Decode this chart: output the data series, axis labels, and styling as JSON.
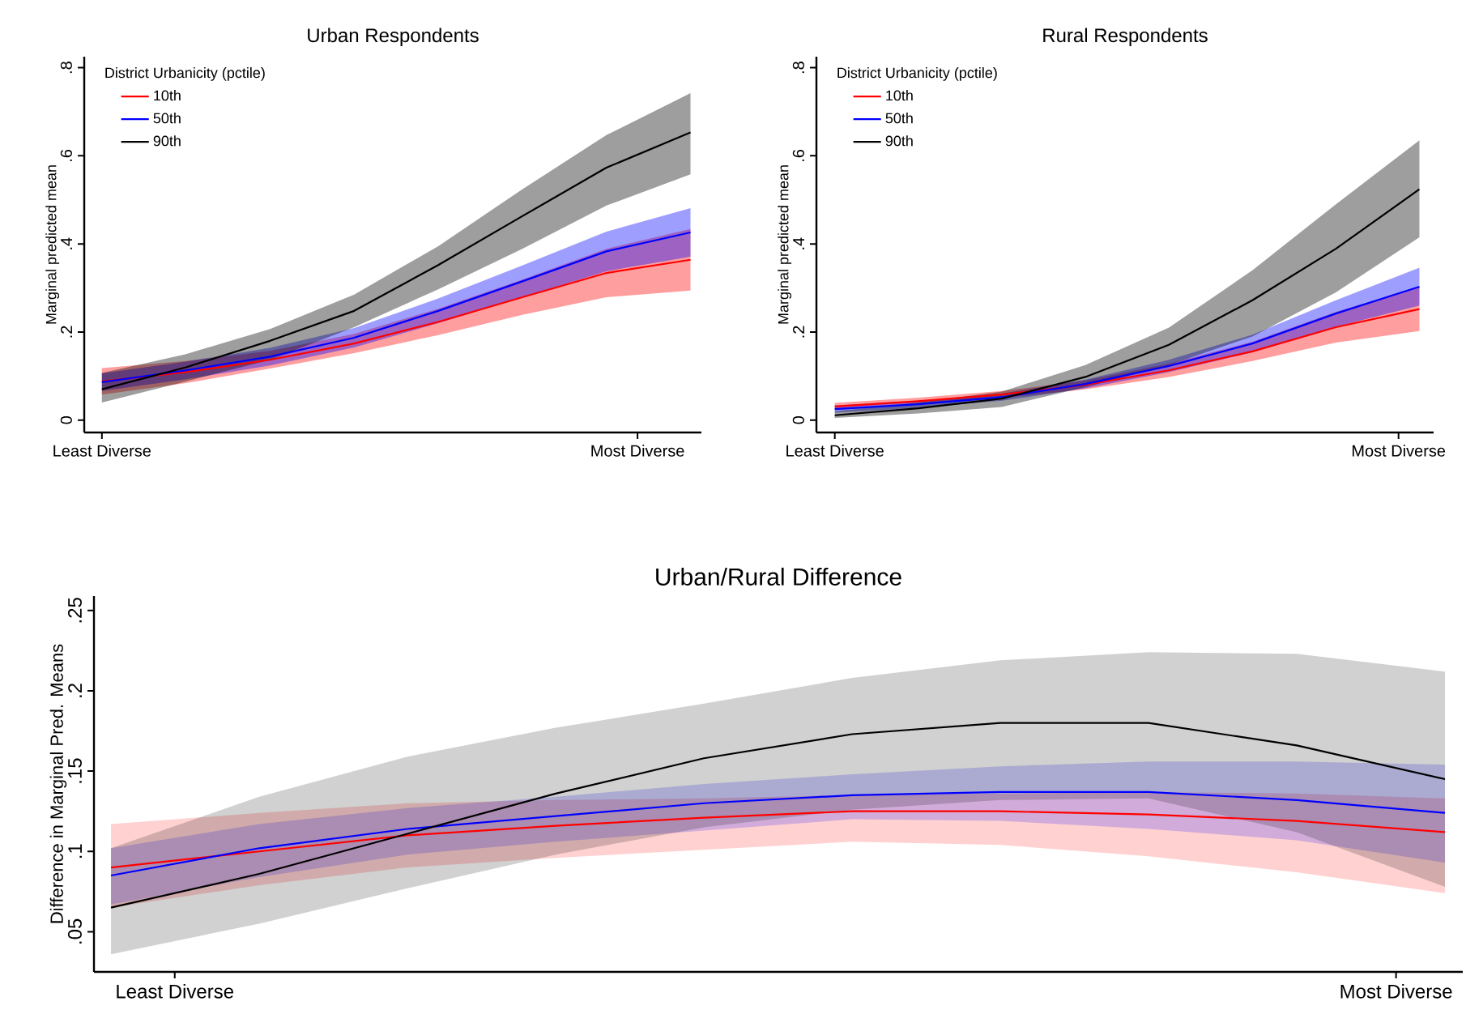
{
  "chart_data": [
    {
      "type": "line",
      "title": "Urban Respondents",
      "ylabel": "Marginal predicted mean",
      "legend_title": "District Urbanicity (pctile)",
      "legend": "top left",
      "annotations": [
        "Least Diverse",
        "Most Diverse"
      ],
      "ylim": [
        -0.028,
        0.825
      ],
      "yticks": [
        0,
        {
          "value": 0.2,
          "label": ".2"
        },
        {
          "value": 0.4,
          "label": ".4"
        },
        {
          "value": 0.6,
          "label": ".6"
        },
        {
          "value": 0.8,
          "label": ".8"
        }
      ],
      "categories": [
        null,
        null,
        null,
        null,
        null,
        null,
        null,
        null
      ],
      "series": [
        {
          "name": "10th",
          "color": "#ff0000",
          "values": [
            0.088,
            0.109,
            0.137,
            0.174,
            0.223,
            0.279,
            0.334,
            0.364
          ],
          "lower": [
            0.058,
            0.084,
            0.117,
            0.152,
            0.193,
            0.239,
            0.279,
            0.294
          ],
          "upper": [
            0.118,
            0.134,
            0.157,
            0.196,
            0.253,
            0.319,
            0.389,
            0.434
          ]
        },
        {
          "name": "50th",
          "color": "#0000ff",
          "values": [
            0.086,
            0.113,
            0.144,
            0.187,
            0.248,
            0.315,
            0.383,
            0.426
          ],
          "lower": [
            0.066,
            0.093,
            0.124,
            0.165,
            0.22,
            0.279,
            0.338,
            0.371
          ],
          "upper": [
            0.106,
            0.133,
            0.164,
            0.209,
            0.276,
            0.351,
            0.428,
            0.481
          ]
        },
        {
          "name": "90th",
          "color": "#000000",
          "values": [
            0.07,
            0.12,
            0.18,
            0.248,
            0.352,
            0.463,
            0.573,
            0.653
          ],
          "lower": [
            0.04,
            0.088,
            0.137,
            0.211,
            0.297,
            0.389,
            0.487,
            0.558
          ],
          "upper": [
            0.107,
            0.15,
            0.207,
            0.285,
            0.395,
            0.524,
            0.647,
            0.742
          ]
        }
      ]
    },
    {
      "type": "line",
      "title": "Rural Respondents",
      "ylabel": "Marginal predicted mean",
      "legend_title": "District Urbanicity (pctile)",
      "legend": "top left",
      "annotations": [
        "Least Diverse",
        "Most Diverse"
      ],
      "ylim": [
        -0.028,
        0.825
      ],
      "yticks": [
        0,
        {
          "value": 0.2,
          "label": ".2"
        },
        {
          "value": 0.4,
          "label": ".4"
        },
        {
          "value": 0.6,
          "label": ".6"
        },
        {
          "value": 0.8,
          "label": ".8"
        }
      ],
      "categories": [
        null,
        null,
        null,
        null,
        null,
        null,
        null,
        null
      ],
      "series": [
        {
          "name": "10th",
          "color": "#ff0000",
          "values": [
            0.031,
            0.043,
            0.058,
            0.08,
            0.113,
            0.156,
            0.211,
            0.252
          ],
          "lower": [
            0.023,
            0.035,
            0.05,
            0.07,
            0.098,
            0.134,
            0.176,
            0.202
          ],
          "upper": [
            0.039,
            0.051,
            0.066,
            0.09,
            0.128,
            0.178,
            0.246,
            0.302
          ]
        },
        {
          "name": "50th",
          "color": "#0000ff",
          "values": [
            0.025,
            0.036,
            0.052,
            0.082,
            0.123,
            0.174,
            0.242,
            0.303
          ],
          "lower": [
            0.017,
            0.028,
            0.044,
            0.072,
            0.109,
            0.154,
            0.212,
            0.26
          ],
          "upper": [
            0.033,
            0.044,
            0.06,
            0.092,
            0.137,
            0.194,
            0.272,
            0.346
          ]
        },
        {
          "name": "90th",
          "color": "#000000",
          "values": [
            0.011,
            0.027,
            0.049,
            0.098,
            0.171,
            0.272,
            0.389,
            0.524
          ],
          "lower": [
            0.005,
            0.015,
            0.03,
            0.075,
            0.125,
            0.19,
            0.29,
            0.415
          ],
          "upper": [
            0.02,
            0.04,
            0.065,
            0.125,
            0.21,
            0.34,
            0.49,
            0.635
          ]
        }
      ]
    },
    {
      "type": "line",
      "title": "Urban/Rural Difference",
      "ylabel": "Difference in Marginal Pred. Means",
      "annotations": [
        "Least Diverse",
        "Most Diverse"
      ],
      "ylim": [
        0.025,
        0.259
      ],
      "yticks": [
        {
          "value": 0.05,
          "label": ".05"
        },
        {
          "value": 0.1,
          "label": ".1"
        },
        {
          "value": 0.15,
          "label": ".15"
        },
        {
          "value": 0.2,
          "label": ".2"
        },
        {
          "value": 0.25,
          "label": ".25"
        }
      ],
      "categories": [
        null,
        null,
        null,
        null,
        null,
        null,
        null,
        null,
        null,
        null
      ],
      "series": [
        {
          "color": "#ff0000",
          "values": [
            0.09,
            0.1,
            0.11,
            0.116,
            0.121,
            0.125,
            0.125,
            0.123,
            0.119,
            0.112
          ],
          "lower": [
            0.065,
            0.079,
            0.09,
            0.096,
            0.101,
            0.106,
            0.104,
            0.097,
            0.087,
            0.074
          ],
          "upper": [
            0.117,
            0.124,
            0.13,
            0.132,
            0.133,
            0.135,
            0.136,
            0.137,
            0.136,
            0.133
          ]
        },
        {
          "color": "#0000ff",
          "values": [
            0.085,
            0.102,
            0.114,
            0.122,
            0.13,
            0.135,
            0.137,
            0.137,
            0.132,
            0.124
          ],
          "lower": [
            0.067,
            0.084,
            0.098,
            0.106,
            0.113,
            0.12,
            0.119,
            0.114,
            0.107,
            0.093
          ],
          "upper": [
            0.102,
            0.117,
            0.127,
            0.134,
            0.142,
            0.148,
            0.153,
            0.156,
            0.156,
            0.154
          ]
        },
        {
          "color": "#000000",
          "values": [
            0.065,
            0.086,
            0.111,
            0.136,
            0.158,
            0.173,
            0.18,
            0.18,
            0.166,
            0.145
          ],
          "lower": [
            0.036,
            0.055,
            0.077,
            0.098,
            0.115,
            0.126,
            0.132,
            0.133,
            0.112,
            0.078
          ],
          "upper": [
            0.102,
            0.134,
            0.159,
            0.177,
            0.192,
            0.208,
            0.219,
            0.224,
            0.223,
            0.212
          ]
        }
      ]
    }
  ]
}
